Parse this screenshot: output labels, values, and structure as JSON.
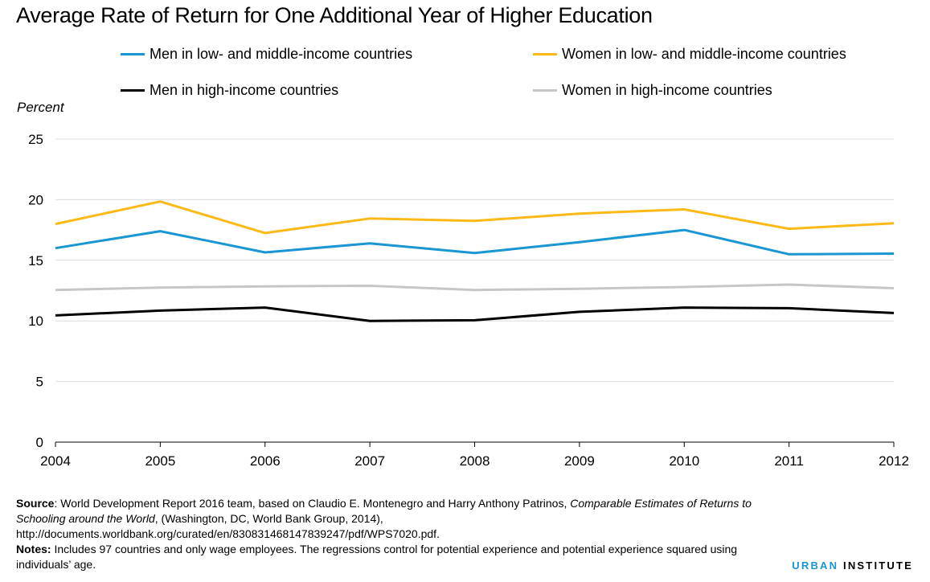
{
  "title": "Average Rate of Return for One Additional Year of Higher Education",
  "legend": [
    {
      "label": "Men in low- and middle-income countries",
      "color": "#1a96d2"
    },
    {
      "label": "Women in low- and middle-income countries",
      "color": "#fcb918"
    },
    {
      "label": "Men in high-income countries",
      "color": "#000000"
    },
    {
      "label": "Women in high-income countries",
      "color": "#c6c6c6"
    }
  ],
  "chart_data": {
    "type": "line",
    "title": "Average Rate of Return for One Additional Year of Higher Education",
    "ylabel": "Percent",
    "xlabel": "",
    "x": [
      "2004",
      "2005",
      "2006",
      "2007",
      "2008",
      "2009",
      "2010",
      "2011",
      "2012"
    ],
    "ylim": [
      0,
      25
    ],
    "yticks": [
      0,
      5,
      10,
      15,
      20,
      25
    ],
    "grid": true,
    "legend_position": "top",
    "series": [
      {
        "name": "Men in low- and middle-income countries",
        "color": "#1a96d2",
        "values": [
          16.0,
          17.4,
          15.65,
          16.4,
          15.6,
          16.5,
          17.5,
          15.5,
          15.55
        ]
      },
      {
        "name": "Women in low- and middle-income countries",
        "color": "#fcb918",
        "values": [
          18.0,
          19.85,
          17.25,
          18.45,
          18.25,
          18.85,
          19.2,
          17.6,
          18.05
        ]
      },
      {
        "name": "Men in high-income countries",
        "color": "#000000",
        "values": [
          10.45,
          10.85,
          11.1,
          10.0,
          10.05,
          10.75,
          11.1,
          11.05,
          10.65
        ]
      },
      {
        "name": "Women in high-income countries",
        "color": "#c6c6c6",
        "values": [
          12.55,
          12.75,
          12.85,
          12.9,
          12.55,
          12.65,
          12.8,
          13.0,
          12.7
        ]
      }
    ]
  },
  "footer": {
    "source_label": "Source",
    "source_text_1": ": World Development Report 2016 team, based on Claudio E. Montenegro and Harry Anthony Patrinos, ",
    "source_italic": "Comparable Estimates of Returns to Schooling around the World",
    "source_text_2": ", (Washington, DC, World Bank Group, 2014), http://documents.worldbank.org/curated/en/830831468147839247/pdf/WPS7020.pdf.",
    "notes_label": "Notes:",
    "notes_text": " Includes 97 countries and only wage employees. The regressions control for potential experience and potential experience squared using individuals’ age."
  },
  "brand": {
    "part1": "URBAN",
    "part2": " INSTITUTE"
  }
}
